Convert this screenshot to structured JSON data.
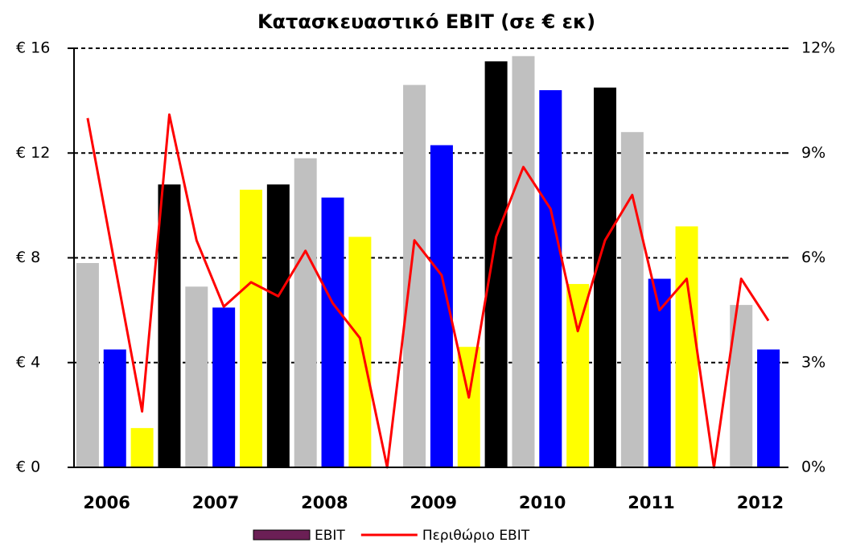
{
  "chart_data": {
    "type": "bar",
    "title": "Κατασκευαστικό EBIT (σε € εκ)",
    "categories": [
      null,
      "2006",
      null,
      null,
      null,
      "2007",
      null,
      null,
      null,
      "2008",
      null,
      null,
      null,
      "2009",
      null,
      null,
      null,
      "2010",
      null,
      null,
      null,
      "2011",
      null,
      null,
      null,
      "2012"
    ],
    "series": [
      {
        "name": "EBIT",
        "type": "bar",
        "color": "#6b1f55",
        "colors": [
          "#c0c0c0",
          "#0000ff",
          "#ffff00",
          "#000000"
        ],
        "values": [
          7.8,
          4.5,
          1.5,
          10.8,
          6.9,
          6.1,
          10.6,
          10.8,
          11.8,
          10.3,
          8.8,
          0,
          14.6,
          12.3,
          4.6,
          15.5,
          15.7,
          14.4,
          7.0,
          14.5,
          12.8,
          7.2,
          9.2,
          0,
          6.2,
          4.5
        ]
      },
      {
        "name": "Περιθώριο EBIT",
        "type": "line",
        "axis": "y2",
        "color": "#ff0000",
        "values": [
          10.0,
          5.8,
          1.6,
          10.1,
          6.5,
          4.6,
          5.3,
          4.9,
          6.2,
          4.7,
          3.7,
          0,
          6.5,
          5.5,
          2.0,
          6.6,
          8.6,
          7.4,
          3.9,
          6.5,
          7.8,
          4.5,
          5.4,
          0,
          5.4,
          4.2
        ]
      }
    ],
    "ylim": [
      0,
      16
    ],
    "yticks": [
      {
        "value": 0,
        "label": "€ 0"
      },
      {
        "value": 4,
        "label": "€ 4"
      },
      {
        "value": 8,
        "label": "€ 8"
      },
      {
        "value": 12,
        "label": "€ 12"
      },
      {
        "value": 16,
        "label": "€ 16"
      }
    ],
    "y2lim": [
      0,
      12
    ],
    "y2ticks": [
      {
        "value": 0,
        "label": "0%"
      },
      {
        "value": 3,
        "label": "3%"
      },
      {
        "value": 6,
        "label": "6%"
      },
      {
        "value": 9,
        "label": "9%"
      },
      {
        "value": 12,
        "label": "12%"
      }
    ],
    "grid": true,
    "legend": "bottom"
  }
}
